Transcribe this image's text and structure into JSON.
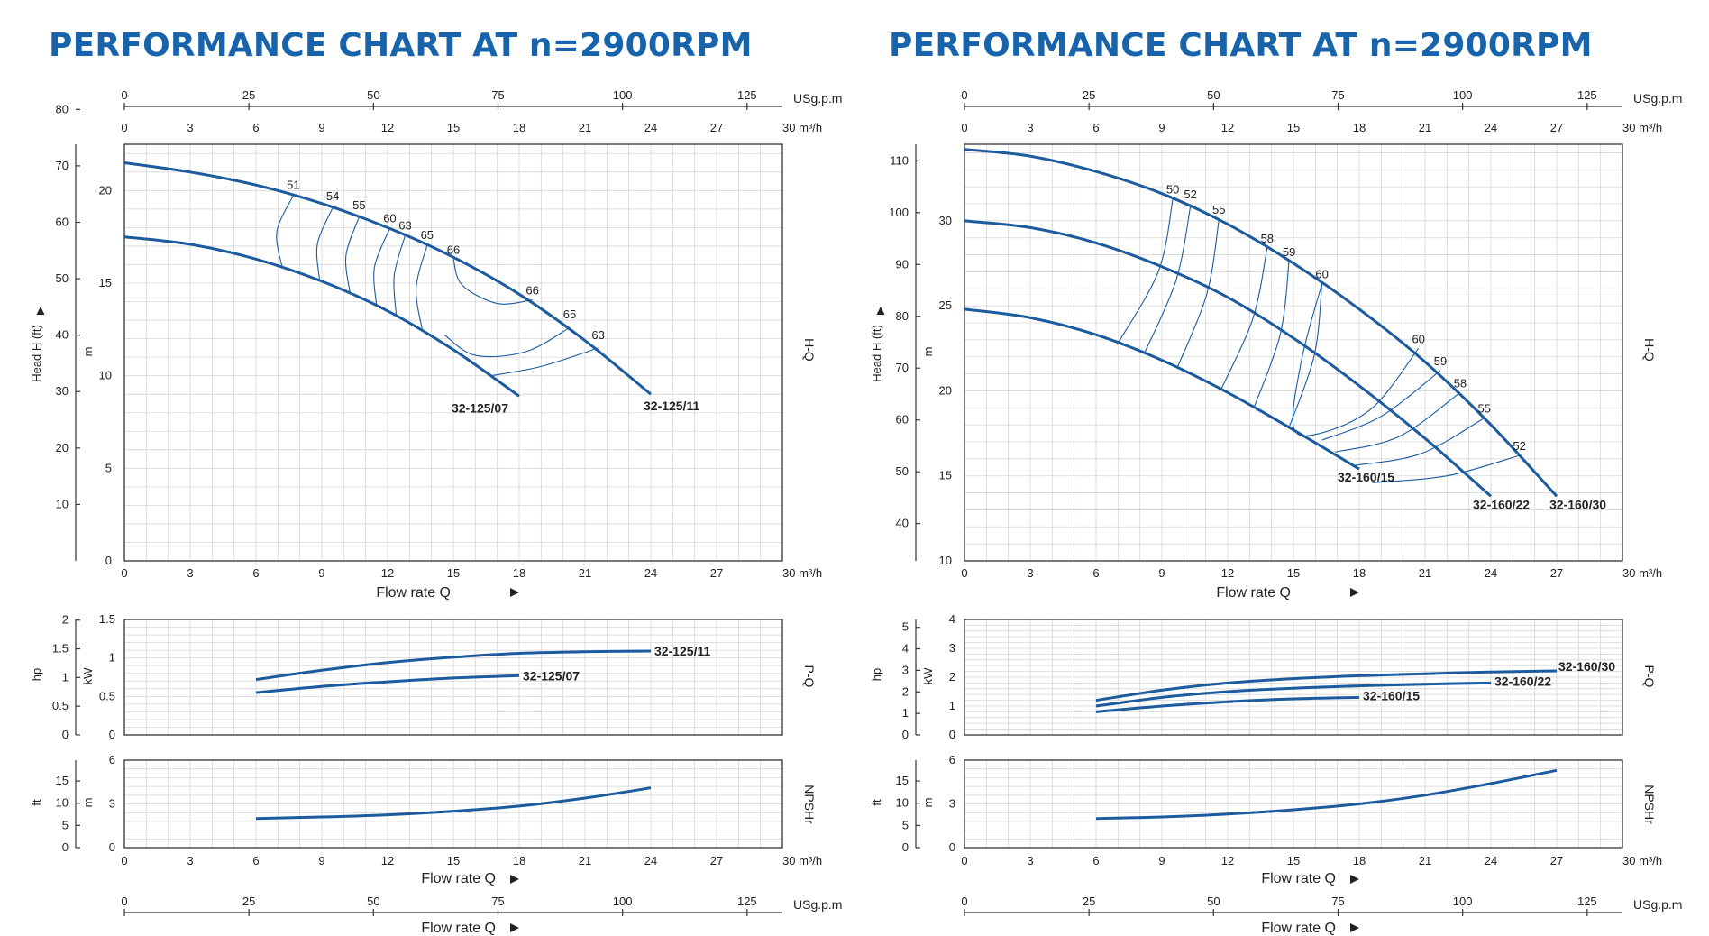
{
  "colors": {
    "title": "#1764ac",
    "curve": "#1b5b9e",
    "grid": "#d6d6d6",
    "axis": "#333333"
  },
  "left": {
    "title": "PERFORMANCE CHART AT n=2900RPM",
    "usgpm_unit": "USg.p.m",
    "m3h_unit": "m³/h",
    "usgpm_ticks": [
      "0",
      "25",
      "50",
      "75",
      "100",
      "125"
    ],
    "q_ticks": [
      "0",
      "3",
      "6",
      "9",
      "12",
      "15",
      "18",
      "21",
      "24",
      "27",
      "30"
    ],
    "flow_label": "Flow rate Q",
    "head_ft_label": "Head H (ft)",
    "head_m_label": "m",
    "hq_label": "H-Q",
    "ft_ticks": [
      "10",
      "20",
      "30",
      "40",
      "50",
      "60",
      "70",
      "80"
    ],
    "m_ticks": [
      "0",
      "5",
      "10",
      "15",
      "20"
    ],
    "hp_label": "hp",
    "kw_label": "kW",
    "pq_label": "P-Q",
    "hp_ticks": [
      "0",
      "0.5",
      "1",
      "1.5",
      "2"
    ],
    "kw_ticks": [
      "0",
      "0.5",
      "1",
      "1.5"
    ],
    "ft2_label": "ft",
    "m2_label": "m",
    "npsh_label": "NPSHr",
    "npsh_ft_ticks": [
      "0",
      "5",
      "10",
      "15"
    ],
    "npsh_m_ticks": [
      "0",
      "3",
      "6"
    ]
  },
  "right": {
    "title": "PERFORMANCE CHART AT n=2900RPM",
    "usgpm_unit": "USg.p.m",
    "m3h_unit": "m³/h",
    "usgpm_ticks": [
      "0",
      "25",
      "50",
      "75",
      "100",
      "125"
    ],
    "q_ticks": [
      "0",
      "3",
      "6",
      "9",
      "12",
      "15",
      "18",
      "21",
      "24",
      "27",
      "30"
    ],
    "flow_label": "Flow rate Q",
    "head_ft_label": "Head H (ft)",
    "head_m_label": "m",
    "hq_label": "H-Q",
    "ft_ticks": [
      "40",
      "50",
      "60",
      "70",
      "80",
      "90",
      "100",
      "110"
    ],
    "m_ticks": [
      "10",
      "15",
      "20",
      "25",
      "30"
    ],
    "hp_label": "hp",
    "kw_label": "kW",
    "pq_label": "P-Q",
    "hp_ticks": [
      "0",
      "1",
      "2",
      "3",
      "4",
      "5"
    ],
    "kw_ticks": [
      "0",
      "1",
      "2",
      "3",
      "4"
    ],
    "ft2_label": "ft",
    "m2_label": "m",
    "npsh_label": "NPSHr",
    "npsh_ft_ticks": [
      "0",
      "5",
      "10",
      "15"
    ],
    "npsh_m_ticks": [
      "0",
      "3",
      "6"
    ]
  },
  "chart_data": [
    {
      "type": "line",
      "title": "PERFORMANCE CHART AT n=2900RPM",
      "panel": "H-Q",
      "xlabel": "Flow rate Q",
      "x_unit": "m³/h",
      "xlim": [
        0,
        30
      ],
      "ylabel": "m",
      "ylim": [
        0,
        22.5
      ],
      "series": [
        {
          "name": "32-125/11",
          "x": [
            0,
            3,
            6,
            9,
            12,
            15,
            18,
            21,
            24
          ],
          "y": [
            21.5,
            21.0,
            20.3,
            19.3,
            18.0,
            16.4,
            14.4,
            11.9,
            9.0
          ]
        },
        {
          "name": "32-125/07",
          "x": [
            0,
            3,
            6,
            9,
            12,
            15,
            18
          ],
          "y": [
            17.5,
            17.1,
            16.3,
            15.1,
            13.5,
            11.4,
            8.9
          ]
        }
      ],
      "efficiency_labels": [
        {
          "text": "51",
          "x": 7.7,
          "y": 19.8
        },
        {
          "text": "54",
          "x": 9.5,
          "y": 19.2
        },
        {
          "text": "55",
          "x": 10.7,
          "y": 18.7
        },
        {
          "text": "60",
          "x": 12.1,
          "y": 18.0
        },
        {
          "text": "63",
          "x": 12.8,
          "y": 17.6
        },
        {
          "text": "65",
          "x": 13.8,
          "y": 17.1
        },
        {
          "text": "66",
          "x": 15.0,
          "y": 16.3
        },
        {
          "text": "66",
          "x": 18.6,
          "y": 14.1
        },
        {
          "text": "65",
          "x": 20.3,
          "y": 12.8
        },
        {
          "text": "63",
          "x": 21.6,
          "y": 11.7
        }
      ]
    },
    {
      "type": "line",
      "title": "PERFORMANCE CHART AT n=2900RPM",
      "panel": "P-Q",
      "xlabel": "Flow rate Q",
      "x_unit": "m³/h",
      "xlim": [
        0,
        30
      ],
      "ylabel": "kW",
      "ylim": [
        0,
        1.5
      ],
      "series": [
        {
          "name": "32-125/11",
          "x": [
            6,
            9,
            12,
            15,
            18,
            21,
            24
          ],
          "y": [
            0.72,
            0.84,
            0.94,
            1.01,
            1.06,
            1.08,
            1.09
          ]
        },
        {
          "name": "32-125/07",
          "x": [
            6,
            9,
            12,
            15,
            18
          ],
          "y": [
            0.55,
            0.63,
            0.69,
            0.74,
            0.77
          ]
        }
      ]
    },
    {
      "type": "line",
      "title": "PERFORMANCE CHART AT n=2900RPM",
      "panel": "NPSHr",
      "xlabel": "Flow rate Q",
      "x_unit": "m³/h",
      "xlim": [
        0,
        30
      ],
      "ylabel": "m",
      "ylim": [
        0,
        6
      ],
      "series": [
        {
          "x": [
            6,
            9,
            12,
            15,
            18,
            21,
            24
          ],
          "y": [
            2.0,
            2.1,
            2.25,
            2.5,
            2.85,
            3.4,
            4.1
          ]
        }
      ]
    },
    {
      "type": "line",
      "title": "PERFORMANCE CHART AT n=2900RPM",
      "panel": "H-Q",
      "xlabel": "Flow rate Q",
      "x_unit": "m³/h",
      "xlim": [
        0,
        30
      ],
      "ylabel": "m",
      "ylim": [
        10,
        34.5
      ],
      "series": [
        {
          "name": "32-160/30",
          "x": [
            0,
            3,
            6,
            9,
            12,
            15,
            18,
            21,
            24,
            27
          ],
          "y": [
            34.2,
            33.8,
            32.9,
            31.6,
            29.8,
            27.5,
            24.8,
            21.7,
            18.0,
            13.8
          ]
        },
        {
          "name": "32-160/22",
          "x": [
            0,
            3,
            6,
            9,
            12,
            15,
            18,
            21,
            24
          ],
          "y": [
            30.0,
            29.6,
            28.7,
            27.3,
            25.5,
            23.1,
            20.3,
            17.2,
            13.8
          ]
        },
        {
          "name": "32-160/15",
          "x": [
            0,
            3,
            6,
            9,
            12,
            15,
            18
          ],
          "y": [
            24.8,
            24.3,
            23.3,
            21.8,
            19.9,
            17.7,
            15.4
          ]
        }
      ],
      "efficiency_labels": [
        {
          "text": "50",
          "x": 9.5,
          "y": 31.3
        },
        {
          "text": "52",
          "x": 10.3,
          "y": 31.0
        },
        {
          "text": "55",
          "x": 11.6,
          "y": 30.1
        },
        {
          "text": "58",
          "x": 13.8,
          "y": 28.4
        },
        {
          "text": "59",
          "x": 14.8,
          "y": 27.6
        },
        {
          "text": "60",
          "x": 16.3,
          "y": 26.3
        },
        {
          "text": "60",
          "x": 20.7,
          "y": 22.5
        },
        {
          "text": "59",
          "x": 21.7,
          "y": 21.2
        },
        {
          "text": "58",
          "x": 22.6,
          "y": 19.9
        },
        {
          "text": "55",
          "x": 23.7,
          "y": 18.4
        },
        {
          "text": "52",
          "x": 25.3,
          "y": 16.2
        }
      ]
    },
    {
      "type": "line",
      "title": "PERFORMANCE CHART AT n=2900RPM",
      "panel": "P-Q",
      "xlabel": "Flow rate Q",
      "x_unit": "m³/h",
      "xlim": [
        0,
        30
      ],
      "ylabel": "kW",
      "ylim": [
        0,
        4
      ],
      "series": [
        {
          "name": "32-160/30",
          "x": [
            6,
            9,
            12,
            15,
            18,
            21,
            24,
            27
          ],
          "y": [
            1.2,
            1.55,
            1.8,
            1.95,
            2.05,
            2.12,
            2.18,
            2.22
          ]
        },
        {
          "name": "32-160/22",
          "x": [
            6,
            9,
            12,
            15,
            18,
            21,
            24
          ],
          "y": [
            1.0,
            1.3,
            1.5,
            1.62,
            1.7,
            1.76,
            1.8
          ]
        },
        {
          "name": "32-160/15",
          "x": [
            6,
            9,
            12,
            15,
            18
          ],
          "y": [
            0.8,
            1.0,
            1.15,
            1.25,
            1.3
          ]
        }
      ]
    },
    {
      "type": "line",
      "title": "PERFORMANCE CHART AT n=2900RPM",
      "panel": "NPSHr",
      "xlabel": "Flow rate Q",
      "x_unit": "m³/h",
      "xlim": [
        0,
        30
      ],
      "ylabel": "m",
      "ylim": [
        0,
        6
      ],
      "series": [
        {
          "x": [
            6,
            9,
            12,
            15,
            18,
            21,
            24,
            27
          ],
          "y": [
            2.0,
            2.1,
            2.3,
            2.6,
            3.0,
            3.6,
            4.4,
            5.3
          ]
        }
      ]
    }
  ]
}
